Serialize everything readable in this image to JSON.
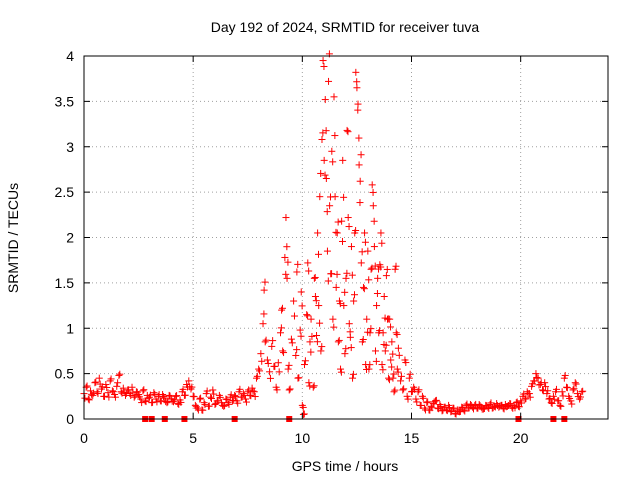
{
  "chart_data": {
    "type": "scatter",
    "title": "Day 192 of 2024, SRMTID for receiver tuva",
    "xlabel": "GPS time / hours",
    "ylabel": "SRMTID / TECUs",
    "xlim": [
      0,
      24
    ],
    "ylim": [
      0,
      4
    ],
    "xticks": [
      0,
      5,
      10,
      15,
      20
    ],
    "xtick_labels": [
      "0",
      "5",
      "10",
      "15",
      "20"
    ],
    "yticks": [
      0,
      0.5,
      1,
      1.5,
      2,
      2.5,
      3,
      3.5,
      4
    ],
    "ytick_labels": [
      "0",
      "0.5",
      "1",
      "1.5",
      "2",
      "2.5",
      "3",
      "3.5",
      "4"
    ],
    "grid": true,
    "marker": "+",
    "color": "#ff0000",
    "series": [
      {
        "name": "SRMTID",
        "points": [
          [
            0.0,
            0.28
          ],
          [
            0.1,
            0.35
          ],
          [
            0.2,
            0.22
          ],
          [
            0.3,
            0.31
          ],
          [
            0.4,
            0.26
          ],
          [
            0.5,
            0.4
          ],
          [
            0.6,
            0.3
          ],
          [
            0.7,
            0.45
          ],
          [
            0.8,
            0.33
          ],
          [
            0.9,
            0.25
          ],
          [
            1.0,
            0.38
          ],
          [
            1.1,
            0.29
          ],
          [
            1.2,
            0.42
          ],
          [
            1.3,
            0.31
          ],
          [
            1.4,
            0.27
          ],
          [
            1.5,
            0.36
          ],
          [
            1.6,
            0.48
          ],
          [
            1.7,
            0.3
          ],
          [
            1.8,
            0.34
          ],
          [
            1.9,
            0.26
          ],
          [
            2.0,
            0.32
          ],
          [
            2.1,
            0.28
          ],
          [
            2.2,
            0.35
          ],
          [
            2.3,
            0.24
          ],
          [
            2.4,
            0.3
          ],
          [
            2.5,
            0.27
          ],
          [
            2.6,
            0.22
          ],
          [
            2.7,
            0.31
          ],
          [
            2.8,
            0.2
          ],
          [
            2.9,
            0.26
          ],
          [
            3.0,
            0.24
          ],
          [
            3.1,
            0.18
          ],
          [
            3.2,
            0.29
          ],
          [
            3.3,
            0.22
          ],
          [
            3.4,
            0.25
          ],
          [
            3.5,
            0.2
          ],
          [
            3.6,
            0.27
          ],
          [
            3.7,
            0.23
          ],
          [
            3.8,
            0.18
          ],
          [
            3.9,
            0.26
          ],
          [
            4.0,
            0.22
          ],
          [
            4.1,
            0.19
          ],
          [
            4.2,
            0.25
          ],
          [
            4.3,
            0.17
          ],
          [
            4.4,
            0.21
          ],
          [
            4.5,
            0.3
          ],
          [
            4.6,
            0.26
          ],
          [
            4.7,
            0.38
          ],
          [
            4.8,
            0.42
          ],
          [
            4.9,
            0.33
          ],
          [
            5.0,
            0.25
          ],
          [
            5.1,
            0.15
          ],
          [
            5.2,
            0.12
          ],
          [
            5.3,
            0.22
          ],
          [
            5.4,
            0.1
          ],
          [
            5.5,
            0.18
          ],
          [
            5.6,
            0.28
          ],
          [
            5.7,
            0.14
          ],
          [
            5.8,
            0.24
          ],
          [
            5.9,
            0.32
          ],
          [
            6.0,
            0.16
          ],
          [
            6.1,
            0.2
          ],
          [
            6.2,
            0.26
          ],
          [
            6.3,
            0.18
          ],
          [
            6.4,
            0.14
          ],
          [
            6.5,
            0.22
          ],
          [
            6.6,
            0.18
          ],
          [
            6.7,
            0.24
          ],
          [
            6.8,
            0.2
          ],
          [
            6.9,
            0.26
          ],
          [
            7.0,
            0.2
          ],
          [
            7.1,
            0.3
          ],
          [
            7.2,
            0.24
          ],
          [
            7.3,
            0.28
          ],
          [
            7.4,
            0.22
          ],
          [
            7.5,
            0.3
          ],
          [
            7.6,
            0.26
          ],
          [
            7.7,
            0.34
          ],
          [
            7.8,
            0.3
          ],
          [
            7.9,
            0.45
          ],
          [
            8.0,
            0.55
          ],
          [
            8.1,
            0.72
          ],
          [
            8.2,
            1.05
          ],
          [
            8.25,
            1.42
          ],
          [
            8.3,
            0.85
          ],
          [
            8.4,
            0.65
          ],
          [
            8.5,
            0.52
          ],
          [
            8.6,
            0.8
          ],
          [
            8.7,
            0.58
          ],
          [
            8.8,
            0.35
          ],
          [
            8.9,
            0.62
          ],
          [
            9.0,
            0.95
          ],
          [
            9.05,
            1.2
          ],
          [
            9.1,
            0.75
          ],
          [
            9.2,
            1.78
          ],
          [
            9.25,
            2.22
          ],
          [
            9.3,
            1.55
          ],
          [
            9.35,
            0.55
          ],
          [
            9.4,
            0.32
          ],
          [
            9.5,
            0.88
          ],
          [
            9.6,
            1.3
          ],
          [
            9.7,
            0.7
          ],
          [
            9.75,
            1.62
          ],
          [
            9.8,
            0.45
          ],
          [
            9.9,
            0.98
          ],
          [
            9.95,
            1.4
          ],
          [
            10.0,
            0.15
          ],
          [
            10.05,
            0.05
          ],
          [
            10.1,
            0.6
          ],
          [
            10.2,
            1.15
          ],
          [
            10.25,
            1.72
          ],
          [
            10.3,
            0.4
          ],
          [
            10.35,
            0.85
          ],
          [
            10.4,
            1.1
          ],
          [
            10.5,
            0.35
          ],
          [
            10.55,
            1.55
          ],
          [
            10.6,
            1.35
          ],
          [
            10.65,
            0.92
          ],
          [
            10.7,
            2.05
          ],
          [
            10.75,
            1.25
          ],
          [
            10.8,
            2.45
          ],
          [
            10.85,
            0.75
          ],
          [
            10.9,
            3.08
          ],
          [
            10.95,
            3.95
          ],
          [
            11.0,
            2.85
          ],
          [
            11.05,
            3.52
          ],
          [
            11.1,
            2.65
          ],
          [
            11.15,
            1.85
          ],
          [
            11.2,
            3.72
          ],
          [
            11.25,
            2.35
          ],
          [
            11.3,
            1.6
          ],
          [
            11.35,
            2.95
          ],
          [
            11.4,
            1.1
          ],
          [
            11.45,
            3.55
          ],
          [
            11.5,
            2.45
          ],
          [
            11.55,
            1.45
          ],
          [
            11.6,
            2.05
          ],
          [
            11.65,
            0.85
          ],
          [
            11.7,
            1.3
          ],
          [
            11.75,
            0.55
          ],
          [
            11.8,
            2.18
          ],
          [
            11.85,
            2.85
          ],
          [
            11.9,
            1.25
          ],
          [
            11.95,
            0.72
          ],
          [
            12.0,
            1.55
          ],
          [
            12.05,
            3.18
          ],
          [
            12.1,
            2.22
          ],
          [
            12.15,
            1.05
          ],
          [
            12.2,
            0.9
          ],
          [
            12.25,
            1.9
          ],
          [
            12.3,
            0.45
          ],
          [
            12.35,
            1.3
          ],
          [
            12.4,
            2.05
          ],
          [
            12.45,
            3.82
          ],
          [
            12.5,
            3.65
          ],
          [
            12.55,
            3.47
          ],
          [
            12.6,
            2.8
          ],
          [
            12.65,
            2.62
          ],
          [
            12.7,
            1.72
          ],
          [
            12.75,
            0.85
          ],
          [
            12.8,
            1.45
          ],
          [
            12.85,
            2.05
          ],
          [
            12.9,
            0.6
          ],
          [
            12.95,
            1.1
          ],
          [
            13.0,
            1.85
          ],
          [
            13.05,
            0.55
          ],
          [
            13.1,
            0.95
          ],
          [
            13.15,
            1.65
          ],
          [
            13.2,
            2.58
          ],
          [
            13.25,
            2.35
          ],
          [
            13.3,
            1.9
          ],
          [
            13.35,
            0.75
          ],
          [
            13.4,
            1.25
          ],
          [
            13.45,
            1.55
          ],
          [
            13.5,
            0.95
          ],
          [
            13.55,
            1.7
          ],
          [
            13.6,
            2.05
          ],
          [
            13.65,
            0.6
          ],
          [
            13.7,
            0.95
          ],
          [
            13.75,
            1.35
          ],
          [
            13.8,
            0.75
          ],
          [
            13.85,
            1.58
          ],
          [
            13.9,
            1.1
          ],
          [
            13.95,
            0.45
          ],
          [
            14.0,
            1.1
          ],
          [
            14.05,
            0.65
          ],
          [
            14.1,
            0.85
          ],
          [
            14.15,
            0.45
          ],
          [
            14.2,
            0.3
          ],
          [
            14.25,
            1.65
          ],
          [
            14.3,
            0.95
          ],
          [
            14.35,
            0.55
          ],
          [
            14.4,
            0.78
          ],
          [
            14.5,
            0.42
          ],
          [
            14.6,
            0.32
          ],
          [
            14.7,
            0.65
          ],
          [
            14.8,
            0.25
          ],
          [
            14.9,
            0.45
          ],
          [
            15.0,
            0.3
          ],
          [
            15.1,
            0.35
          ],
          [
            15.2,
            0.22
          ],
          [
            15.3,
            0.3
          ],
          [
            15.4,
            0.15
          ],
          [
            15.5,
            0.25
          ],
          [
            15.6,
            0.12
          ],
          [
            15.7,
            0.18
          ],
          [
            15.8,
            0.1
          ],
          [
            15.9,
            0.14
          ],
          [
            16.0,
            0.17
          ],
          [
            16.1,
            0.2
          ],
          [
            16.2,
            0.12
          ],
          [
            16.3,
            0.16
          ],
          [
            16.4,
            0.09
          ],
          [
            16.5,
            0.13
          ],
          [
            16.6,
            0.1
          ],
          [
            16.7,
            0.15
          ],
          [
            16.8,
            0.08
          ],
          [
            16.9,
            0.12
          ],
          [
            17.0,
            0.06
          ],
          [
            17.1,
            0.1
          ],
          [
            17.2,
            0.08
          ],
          [
            17.3,
            0.13
          ],
          [
            17.4,
            0.1
          ],
          [
            17.5,
            0.15
          ],
          [
            17.6,
            0.12
          ],
          [
            17.7,
            0.16
          ],
          [
            17.8,
            0.13
          ],
          [
            17.9,
            0.15
          ],
          [
            18.0,
            0.12
          ],
          [
            18.1,
            0.16
          ],
          [
            18.2,
            0.13
          ],
          [
            18.3,
            0.11
          ],
          [
            18.4,
            0.15
          ],
          [
            18.5,
            0.13
          ],
          [
            18.6,
            0.16
          ],
          [
            18.7,
            0.12
          ],
          [
            18.8,
            0.14
          ],
          [
            18.9,
            0.17
          ],
          [
            19.0,
            0.13
          ],
          [
            19.1,
            0.15
          ],
          [
            19.2,
            0.12
          ],
          [
            19.3,
            0.16
          ],
          [
            19.4,
            0.14
          ],
          [
            19.5,
            0.17
          ],
          [
            19.6,
            0.13
          ],
          [
            19.7,
            0.15
          ],
          [
            19.8,
            0.18
          ],
          [
            19.9,
            0.14
          ],
          [
            20.0,
            0.2
          ],
          [
            20.1,
            0.25
          ],
          [
            20.2,
            0.22
          ],
          [
            20.3,
            0.3
          ],
          [
            20.4,
            0.28
          ],
          [
            20.5,
            0.36
          ],
          [
            20.6,
            0.42
          ],
          [
            20.7,
            0.5
          ],
          [
            20.8,
            0.45
          ],
          [
            20.9,
            0.38
          ],
          [
            21.0,
            0.32
          ],
          [
            21.1,
            0.4
          ],
          [
            21.2,
            0.28
          ],
          [
            21.3,
            0.22
          ],
          [
            21.4,
            0.18
          ],
          [
            21.5,
            0.25
          ],
          [
            21.6,
            0.3
          ],
          [
            21.7,
            0.2
          ],
          [
            21.8,
            0.15
          ],
          [
            21.9,
            0.3
          ],
          [
            22.0,
            0.45
          ],
          [
            22.1,
            0.35
          ],
          [
            22.2,
            0.25
          ],
          [
            22.3,
            0.2
          ],
          [
            22.4,
            0.32
          ],
          [
            22.5,
            0.4
          ],
          [
            22.6,
            0.28
          ],
          [
            22.7,
            0.22
          ],
          [
            22.8,
            0.3
          ]
        ]
      }
    ],
    "zero_markers_x": [
      2.8,
      3.1,
      3.7,
      4.6,
      6.9,
      9.4,
      19.9,
      21.5,
      22.0
    ]
  }
}
